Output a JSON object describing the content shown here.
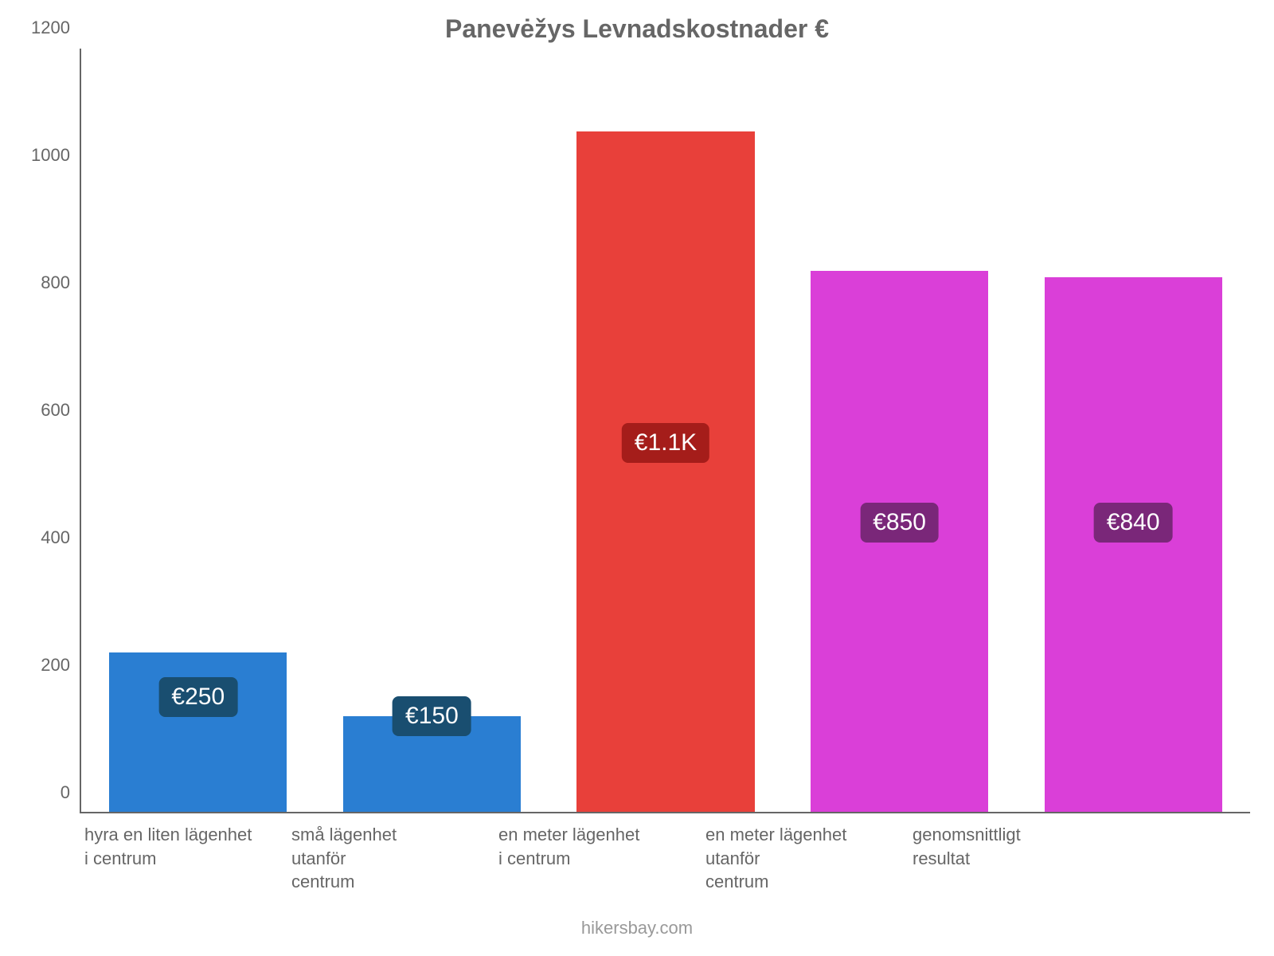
{
  "chart": {
    "type": "bar",
    "title": "Panevėžys Levnadskostnader €",
    "title_color": "#666666",
    "title_fontsize": 32,
    "background_color": "#ffffff",
    "axis_color": "#666666",
    "axis_label_color": "#666666",
    "axis_label_fontsize": 22,
    "ylim": [
      0,
      1200
    ],
    "ytick_step": 200,
    "yticks": [
      {
        "value": 0,
        "label": "0"
      },
      {
        "value": 200,
        "label": "200"
      },
      {
        "value": 400,
        "label": "400"
      },
      {
        "value": 600,
        "label": "600"
      },
      {
        "value": 800,
        "label": "800"
      },
      {
        "value": 1000,
        "label": "1000"
      },
      {
        "value": 1200,
        "label": "1200"
      }
    ],
    "bar_width": 0.76,
    "bars": [
      {
        "label_lines": [
          "hyra en liten lägenhet",
          "i centrum"
        ],
        "value": 250,
        "bar_color": "#2a7ed2",
        "badge_text": "€250",
        "badge_text_color": "#ffffff",
        "badge_bg_color": "#194e70",
        "badge_center_value": 180
      },
      {
        "label_lines": [
          "små lägenhet",
          "utanför",
          "centrum"
        ],
        "value": 150,
        "bar_color": "#2a7ed2",
        "badge_text": "€150",
        "badge_text_color": "#ffffff",
        "badge_bg_color": "#194e70",
        "badge_center_value": 150
      },
      {
        "label_lines": [
          "en meter lägenhet",
          "i centrum"
        ],
        "value": 1070,
        "bar_color": "#e8403a",
        "badge_text": "€1.1K",
        "badge_text_color": "#ffffff",
        "badge_bg_color": "#a51d1a",
        "badge_center_value": 580
      },
      {
        "label_lines": [
          "en meter lägenhet",
          "utanför",
          "centrum"
        ],
        "value": 850,
        "bar_color": "#da3fd8",
        "badge_text": "€850",
        "badge_text_color": "#ffffff",
        "badge_bg_color": "#7a2779",
        "badge_center_value": 455
      },
      {
        "label_lines": [
          "genomsnittligt",
          "resultat"
        ],
        "value": 840,
        "bar_color": "#da3fd8",
        "badge_text": "€840",
        "badge_text_color": "#ffffff",
        "badge_bg_color": "#7a2779",
        "badge_center_value": 455
      }
    ],
    "badge_fontsize": 30,
    "badge_border_radius": 8,
    "attribution": "hikersbay.com",
    "attribution_color": "#999999",
    "attribution_fontsize": 22
  }
}
